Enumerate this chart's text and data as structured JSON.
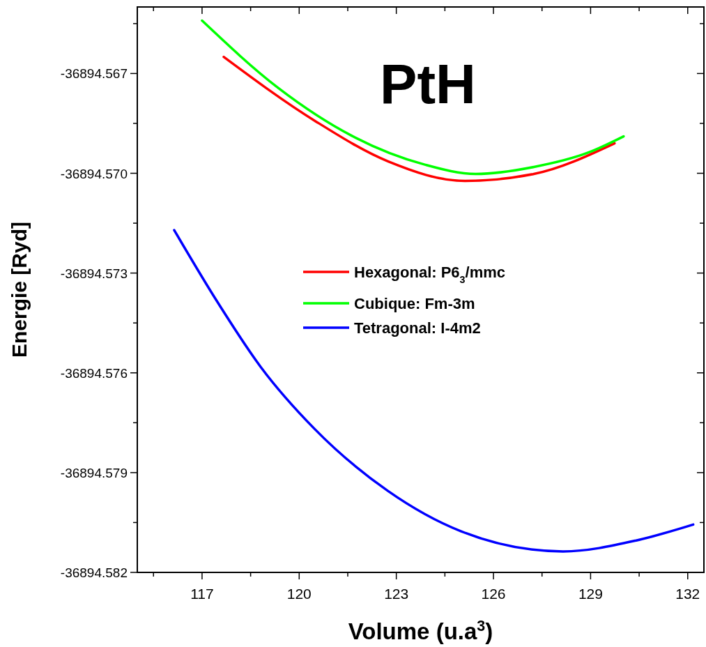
{
  "chart_data": {
    "type": "line",
    "title": "PtH",
    "xlabel": "Volume (u.a$^{3}$)",
    "ylabel": "Energie [Ryd]",
    "xlim": [
      115,
      132.5
    ],
    "ylim": [
      -36894.582,
      -36894.565
    ],
    "xticks": [
      {
        "value": 115.5,
        "label": null
      },
      117,
      {
        "value": 118.5,
        "label": null
      },
      120,
      {
        "value": 121.5,
        "label": null
      },
      123,
      {
        "value": 124.5,
        "label": null
      },
      126,
      {
        "value": 127.5,
        "label": null
      },
      129,
      {
        "value": 130.5,
        "label": null
      },
      132
    ],
    "yticks": [
      -36894.582,
      {
        "value": -36894.5805,
        "label": null
      },
      -36894.579,
      {
        "value": -36894.5775,
        "label": null
      },
      -36894.576,
      {
        "value": -36894.5745,
        "label": null
      },
      -36894.573,
      {
        "value": -36894.5715,
        "label": null
      },
      {
        "value": -36894.57,
        "label": "-36894.570"
      },
      {
        "value": -36894.5685,
        "label": null
      },
      -36894.567,
      {
        "value": -36894.5655,
        "label": null
      }
    ],
    "legend": "center",
    "line_style": "solid",
    "marker": "none",
    "grid": false,
    "series": [
      {
        "name": "Hexagonal: P6$_{3}$/mmc",
        "color": "#ff0000",
        "x": [
          117.67,
          120.48,
          122.74,
          125.12,
          127.25,
          129.74
        ],
        "values": [
          -36894.5665,
          -36894.56842,
          -36894.56964,
          -36894.57023,
          -36894.57002,
          -36894.5691
        ]
      },
      {
        "name": "Cubique: Fm-3m",
        "color": "#00ff00",
        "x": [
          117,
          119.36,
          121.62,
          123.88,
          125.45,
          127.25,
          128.95,
          130.02
        ],
        "values": [
          -36894.56541,
          -36894.56744,
          -36894.56887,
          -36894.56974,
          -36894.57002,
          -36894.56981,
          -36894.56937,
          -36894.56889
        ]
      },
      {
        "name": "Tetragonal: I-4m2",
        "color": "#0000ff",
        "x": [
          116.14,
          117.45,
          118.81,
          120.48,
          122.74,
          124.99,
          128.15,
          130.41,
          132.17
        ],
        "values": [
          -36894.57171,
          -36894.57383,
          -36894.57582,
          -36894.57769,
          -36894.57955,
          -36894.58076,
          -36894.58137,
          -36894.58104,
          -36894.58056
        ]
      }
    ]
  }
}
